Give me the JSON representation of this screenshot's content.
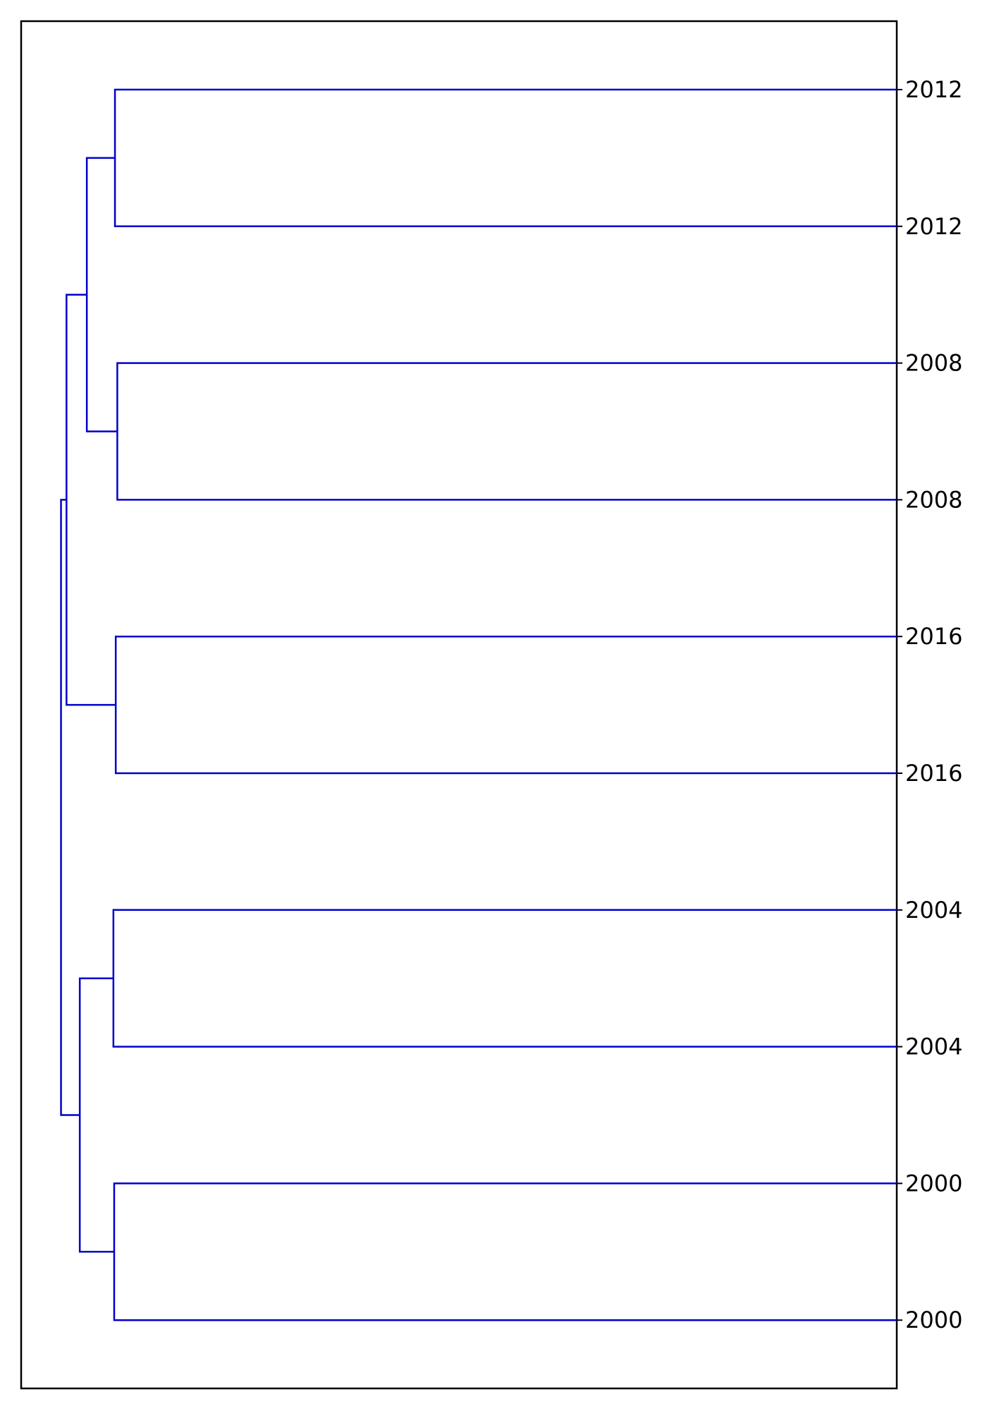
{
  "chart_data": {
    "type": "dendrogram",
    "orientation": "right",
    "title": "",
    "xlabel": "",
    "ylabel": "",
    "link_color": "#0000cc",
    "frame_color": "#000000",
    "label_color": "#000000",
    "grid": false,
    "leaves": [
      "2012",
      "2012",
      "2008",
      "2008",
      "2016",
      "2016",
      "2004",
      "2004",
      "2000",
      "2000"
    ],
    "merges": [
      {
        "left": "leaf:0",
        "right": "leaf:1",
        "height": 1.0
      },
      {
        "left": "leaf:2",
        "right": "leaf:3",
        "height": 0.997
      },
      {
        "left": "leaf:4",
        "right": "leaf:5",
        "height": 0.999
      },
      {
        "left": "leaf:6",
        "right": "leaf:7",
        "height": 1.002
      },
      {
        "left": "leaf:8",
        "right": "leaf:9",
        "height": 1.001
      },
      {
        "left": "node:0",
        "right": "node:1",
        "height": 1.036
      },
      {
        "left": "node:5",
        "right": "node:2",
        "height": 1.062
      },
      {
        "left": "node:3",
        "right": "node:4",
        "height": 1.045
      },
      {
        "left": "node:6",
        "right": "node:7",
        "height": 1.069
      }
    ],
    "x_range": [
      1.12,
      0
    ]
  }
}
